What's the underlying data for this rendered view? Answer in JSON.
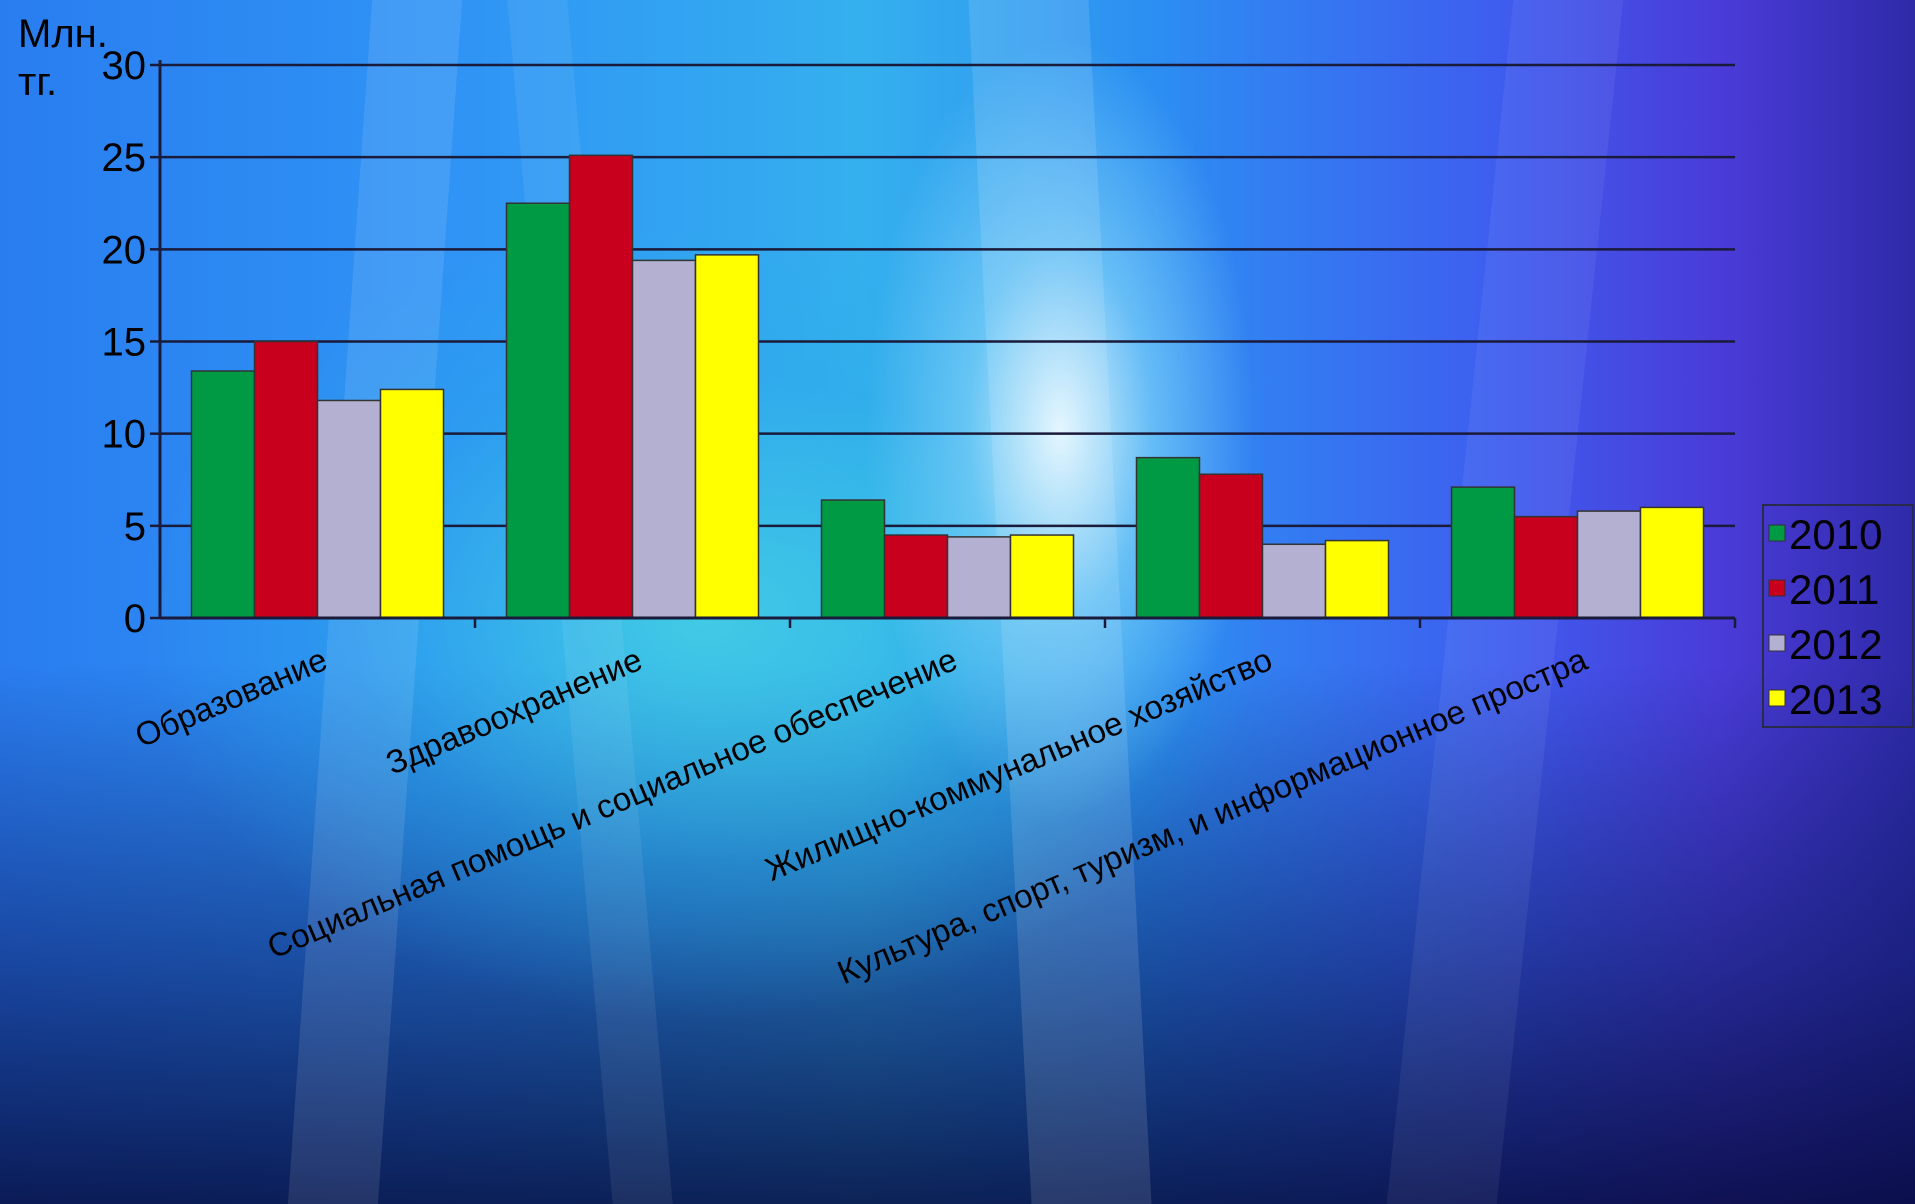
{
  "chart_data": {
    "type": "bar",
    "title": "",
    "ylabel": "Млн. тг.",
    "xlabel": "",
    "ylim": [
      0,
      30
    ],
    "yticks": [
      0,
      5,
      10,
      15,
      20,
      25,
      30
    ],
    "grid": true,
    "legend_position": "right",
    "categories": [
      "Образование",
      "Здравоохранение",
      "Социальная помощь и социальное обеспечение",
      "Жилищно-коммунальное хозяйство",
      "Культура, спорт, туризм, и информационное простра"
    ],
    "series": [
      {
        "name": "2010",
        "color": "#009a44",
        "values": [
          13.4,
          22.5,
          6.4,
          8.7,
          7.1
        ]
      },
      {
        "name": "2011",
        "color": "#c8001e",
        "values": [
          15.0,
          25.1,
          4.5,
          7.8,
          5.5
        ]
      },
      {
        "name": "2012",
        "color": "#b4b0d2",
        "values": [
          11.8,
          19.4,
          4.4,
          4.0,
          5.8
        ]
      },
      {
        "name": "2013",
        "color": "#ffff00",
        "values": [
          12.4,
          19.7,
          4.5,
          4.2,
          6.0
        ]
      }
    ]
  }
}
